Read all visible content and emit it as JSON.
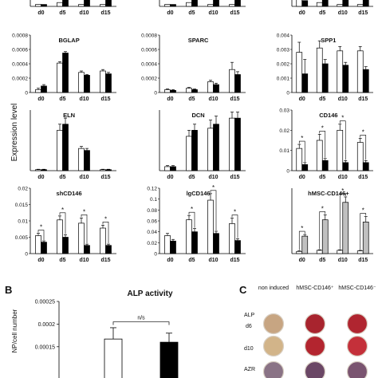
{
  "figure": {
    "y_axis_label": "Expression level",
    "panel_b_letter": "B",
    "panel_c_letter": "C"
  },
  "chart_data": [
    {
      "type": "bar",
      "title": "",
      "categories": [
        "d0",
        "d5",
        "d10",
        "d15"
      ],
      "ylim": [
        0,
        0.0002
      ],
      "yticks": [],
      "series": [
        {
          "name": "",
          "values": [
            1e-05,
            2e-05,
            1e-05,
            1e-05
          ],
          "errors": [
            0,
            0,
            0,
            0
          ],
          "color": "#ffffff"
        },
        {
          "name": "",
          "values": [
            1e-05,
            0.00015,
            0.00015,
            8e-05
          ],
          "errors": [
            0,
            0,
            0,
            0
          ],
          "color": "#000000"
        }
      ]
    },
    {
      "type": "bar",
      "title": "",
      "categories": [
        "d0",
        "d5",
        "d10",
        "d15"
      ],
      "ylim": [
        0,
        0.0002
      ],
      "yticks": [],
      "series": [
        {
          "name": "",
          "values": [
            1e-05,
            2e-05,
            1e-05,
            1e-05
          ],
          "errors": [
            0,
            0,
            0,
            0
          ],
          "color": "#ffffff"
        },
        {
          "name": "",
          "values": [
            1e-05,
            0.00012,
            0.00012,
            6e-05
          ],
          "errors": [
            0,
            0,
            0,
            0
          ],
          "color": "#000000"
        }
      ]
    },
    {
      "type": "bar",
      "title": "",
      "categories": [
        "d0",
        "d5",
        "d10",
        "d15"
      ],
      "ylim": [
        0,
        0.0002
      ],
      "yticks": [],
      "series": [
        {
          "name": "",
          "values": [
            0.00015,
            2e-05,
            1e-05,
            1e-05
          ],
          "errors": [
            0,
            0,
            0,
            0
          ],
          "color": "#ffffff"
        },
        {
          "name": "",
          "values": [
            3e-05,
            9e-05,
            9e-05,
            4e-05
          ],
          "errors": [
            0,
            0,
            0,
            0
          ],
          "color": "#000000"
        }
      ]
    },
    {
      "type": "bar",
      "title": "BGLAP",
      "categories": [
        "d0",
        "d5",
        "d10",
        "d15"
      ],
      "ylim": [
        0,
        0.0008
      ],
      "yticks": [
        "0",
        "0.0002",
        "0.0004",
        "0.0006",
        "0.0008"
      ],
      "series": [
        {
          "name": "",
          "values": [
            4e-05,
            0.00041,
            0.00028,
            0.0003
          ],
          "errors": [
            2e-05,
            2e-05,
            2e-05,
            2e-05
          ],
          "color": "#ffffff"
        },
        {
          "name": "",
          "values": [
            9e-05,
            0.00055,
            0.00024,
            0.00026
          ],
          "errors": [
            2e-05,
            2e-05,
            1e-05,
            2e-05
          ],
          "color": "#000000"
        }
      ]
    },
    {
      "type": "bar",
      "title": "SPARC",
      "categories": [
        "d0",
        "d5",
        "d10",
        "d15"
      ],
      "ylim": [
        0,
        0.0008
      ],
      "yticks": [
        "0",
        "0.0002",
        "0.0004",
        "0.0006",
        "0.0008"
      ],
      "series": [
        {
          "name": "",
          "values": [
            4e-05,
            6e-05,
            0.00015,
            0.00032
          ],
          "errors": [
            1e-05,
            1e-05,
            2e-05,
            0.0001
          ],
          "color": "#ffffff"
        },
        {
          "name": "",
          "values": [
            3e-05,
            4e-05,
            0.00011,
            0.00025
          ],
          "errors": [
            1e-05,
            1e-05,
            2e-05,
            4e-05
          ],
          "color": "#000000"
        }
      ]
    },
    {
      "type": "bar",
      "title": "SPP1",
      "categories": [
        "d0",
        "d5",
        "d10",
        "d15"
      ],
      "ylim": [
        0,
        0.004
      ],
      "yticks": [
        "0",
        "0.001",
        "0.002",
        "0.003",
        "0.004"
      ],
      "series": [
        {
          "name": "",
          "values": [
            0.0028,
            0.0031,
            0.0029,
            0.0029
          ],
          "errors": [
            0.0007,
            0.0005,
            0.0003,
            0.0003
          ],
          "color": "#ffffff"
        },
        {
          "name": "",
          "values": [
            0.0013,
            0.002,
            0.0019,
            0.0016
          ],
          "errors": [
            0.001,
            0.0003,
            0.0002,
            0.0002
          ],
          "color": "#000000"
        }
      ]
    },
    {
      "type": "bar",
      "title": "ELN",
      "categories": [
        "d0",
        "d5",
        "d10",
        "d15"
      ],
      "ylim": [
        0,
        0.0003
      ],
      "yticks": [],
      "series": [
        {
          "name": "",
          "values": [
            5e-06,
            0.0002,
            0.00011,
            5e-06
          ],
          "errors": [
            2e-06,
            3e-05,
            1e-05,
            2e-06
          ],
          "color": "#ffffff"
        },
        {
          "name": "",
          "values": [
            5e-06,
            0.00023,
            0.0001,
            5e-06
          ],
          "errors": [
            2e-06,
            3e-05,
            1e-05,
            2e-06
          ],
          "color": "#000000"
        }
      ]
    },
    {
      "type": "bar",
      "title": "DCN",
      "categories": [
        "d0",
        "d5",
        "d10",
        "d15"
      ],
      "ylim": [
        0,
        0.0003
      ],
      "yticks": [],
      "series": [
        {
          "name": "",
          "values": [
            2e-05,
            0.00017,
            0.00021,
            0.00026
          ],
          "errors": [
            5e-06,
            3e-05,
            4e-05,
            3e-05
          ],
          "color": "#ffffff"
        },
        {
          "name": "",
          "values": [
            2e-05,
            0.0002,
            0.00023,
            0.00026
          ],
          "errors": [
            5e-06,
            3e-05,
            4e-05,
            3e-05
          ],
          "color": "#000000"
        }
      ]
    },
    {
      "type": "bar",
      "title": "CD146",
      "categories": [
        "d0",
        "d5",
        "d10",
        "d15"
      ],
      "ylim": [
        0,
        0.03
      ],
      "yticks": [
        "0",
        "0.01",
        "0.02",
        "0.03"
      ],
      "series": [
        {
          "name": "",
          "values": [
            0.011,
            0.015,
            0.02,
            0.014
          ],
          "errors": [
            0.002,
            0.003,
            0.003,
            0.002
          ],
          "color": "#ffffff"
        },
        {
          "name": "",
          "values": [
            0.003,
            0.005,
            0.004,
            0.004
          ],
          "errors": [
            0.001,
            0.001,
            0.001,
            0.001
          ],
          "color": "#000000"
        }
      ],
      "sig": [
        true,
        true,
        true,
        true
      ]
    },
    {
      "type": "bar",
      "title": "shCD146",
      "categories": [
        "d0",
        "d5",
        "d10",
        "d15"
      ],
      "ylim": [
        0,
        0.02
      ],
      "yticks": [
        "0",
        "0.005",
        "0.01",
        "0.015",
        "0.02"
      ],
      "series": [
        {
          "name": "",
          "values": [
            0.0055,
            0.0103,
            0.0093,
            0.0078
          ],
          "errors": [
            0.0007,
            0.0012,
            0.0016,
            0.0009
          ],
          "color": "#ffffff"
        },
        {
          "name": "",
          "values": [
            0.0035,
            0.005,
            0.0025,
            0.0025
          ],
          "errors": [
            0.0004,
            0.0007,
            0.0004,
            0.0004
          ],
          "color": "#000000"
        }
      ],
      "sig": [
        true,
        true,
        true,
        true
      ]
    },
    {
      "type": "bar",
      "title": "lgCD146",
      "categories": [
        "d0",
        "d5",
        "d10",
        "d15"
      ],
      "ylim": [
        0,
        0.12
      ],
      "yticks": [
        "0",
        "0.02",
        "0.04",
        "0.06",
        "0.08",
        "0.1",
        "0.12"
      ],
      "series": [
        {
          "name": "",
          "values": [
            0.033,
            0.062,
            0.098,
            0.055
          ],
          "errors": [
            0.004,
            0.008,
            0.012,
            0.01
          ],
          "color": "#ffffff"
        },
        {
          "name": "",
          "values": [
            0.023,
            0.04,
            0.037,
            0.024
          ],
          "errors": [
            0.003,
            0.006,
            0.004,
            0.003
          ],
          "color": "#000000"
        }
      ],
      "sig": [
        false,
        true,
        true,
        true
      ]
    },
    {
      "type": "bar",
      "title": "hMSC-CD146+",
      "categories": [
        "d0",
        "d5",
        "d10",
        "d15"
      ],
      "ylim": [
        0,
        0.12
      ],
      "yticks": [],
      "series": [
        {
          "name": "",
          "values": [
            0.004,
            0.006,
            0.006,
            0.005
          ],
          "errors": [
            0.001,
            0.001,
            0.001,
            0.001
          ],
          "color": "#ffffff"
        },
        {
          "name": "",
          "values": [
            0.032,
            0.062,
            0.094,
            0.058
          ],
          "errors": [
            0.003,
            0.009,
            0.01,
            0.01
          ],
          "color": "#c0c0c0"
        }
      ],
      "sig": [
        true,
        true,
        true,
        true
      ]
    },
    {
      "type": "bar",
      "title": "ALP activity",
      "ylabel": "NP/cell number",
      "categories": [
        "",
        ""
      ],
      "ylim": [
        0,
        0.00025
      ],
      "yticks": [
        "0.00025",
        "0.0002",
        "0.00015"
      ],
      "series": [
        {
          "name": "",
          "values": [
            0.000167,
            0.00016
          ],
          "errors": [
            2.5e-05,
            2e-05
          ],
          "colors": [
            "#ffffff",
            "#000000"
          ]
        }
      ],
      "annotation": "n/s"
    }
  ],
  "panel_c": {
    "headers": [
      "non induced",
      "hMSC-CD146⁺",
      "hMSC-CD146⁻"
    ],
    "rows": [
      {
        "stain": "ALP",
        "time": "d6",
        "colors": [
          "#c7a582",
          "#a8242e",
          "#b02530"
        ]
      },
      {
        "stain": "",
        "time": "d10",
        "colors": [
          "#d2b489",
          "#b3252f",
          "#c4303a"
        ]
      },
      {
        "stain": "AZR",
        "time": "",
        "colors": [
          "#8a7386",
          "#6b4766",
          "#7a5470"
        ]
      }
    ]
  }
}
